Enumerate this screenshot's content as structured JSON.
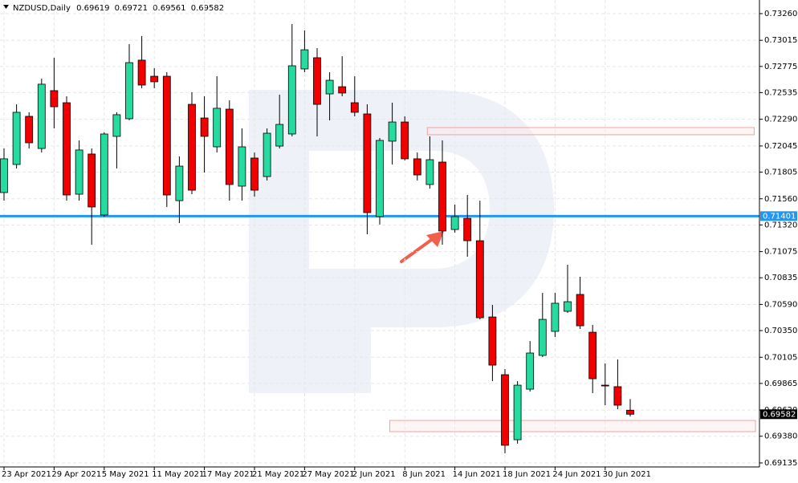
{
  "chart_data": {
    "type": "candlestick",
    "title": "NZDUSD,Daily",
    "categories": [
      "23 Apr 2021",
      null,
      null,
      null,
      "29 Apr 2021",
      null,
      null,
      null,
      "5 May 2021",
      null,
      null,
      null,
      "11 May 2021",
      null,
      null,
      null,
      "17 May 2021",
      null,
      null,
      null,
      "21 May 2021",
      null,
      null,
      null,
      "27 May 2021",
      null,
      null,
      null,
      "2 Jun 2021",
      null,
      null,
      null,
      "8 Jun 2021",
      null,
      null,
      null,
      "14 Jun 2021",
      null,
      null,
      null,
      "18 Jun 2021",
      null,
      null,
      null,
      "24 Jun 2021",
      null,
      null,
      null,
      "30 Jun 2021",
      null,
      null
    ],
    "open": [
      0.71617,
      0.71875,
      0.72317,
      0.72022,
      0.72553,
      0.72442,
      0.71602,
      0.71971,
      0.71411,
      0.72133,
      0.72295,
      0.72833,
      0.72685,
      0.72685,
      0.71543,
      0.72427,
      0.72302,
      0.72037,
      0.72383,
      0.71676,
      0.71934,
      0.71764,
      0.72044,
      0.72155,
      0.72752,
      0.72855,
      0.72523,
      0.72589,
      0.72442,
      0.72339,
      0.71396,
      0.72089,
      0.72265,
      0.71927,
      0.71691,
      0.71897,
      0.71278,
      0.71381,
      0.71175,
      0.70475,
      0.69945,
      0.69348,
      0.69812,
      0.70122,
      0.70343,
      0.70527,
      0.70682,
      0.70335,
      0.69849,
      0.69835,
      0.69619
    ],
    "high": [
      0.72022,
      0.72427,
      0.72354,
      0.72663,
      0.72855,
      0.72501,
      0.72096,
      0.72022,
      0.7217,
      0.72354,
      0.7298,
      0.73054,
      0.72759,
      0.72722,
      0.71949,
      0.72538,
      0.72501,
      0.72685,
      0.72464,
      0.72206,
      0.71985,
      0.72206,
      0.72516,
      0.73164,
      0.73105,
      0.72943,
      0.72722,
      0.72869,
      0.72685,
      0.72427,
      0.72118,
      0.72442,
      0.72317,
      0.71985,
      0.72133,
      0.72096,
      0.71507,
      0.71595,
      0.71543,
      0.70586,
      0.69997,
      0.69886,
      0.70254,
      0.70696,
      0.70696,
      0.70954,
      0.70844,
      0.70402,
      0.70048,
      0.70085,
      0.69721
    ],
    "low": [
      0.71543,
      0.71838,
      0.72022,
      0.71985,
      0.72206,
      0.71543,
      0.71543,
      0.71138,
      0.71396,
      0.71838,
      0.7228,
      0.72575,
      0.72575,
      0.71485,
      0.71337,
      0.71602,
      0.71801,
      0.71985,
      0.71543,
      0.71543,
      0.7158,
      0.71728,
      0.72022,
      0.72133,
      0.72722,
      0.72133,
      0.7228,
      0.72501,
      0.72317,
      0.71234,
      0.71323,
      0.71875,
      0.71912,
      0.71728,
      0.71654,
      0.71138,
      0.71249,
      0.71028,
      0.70453,
      0.69886,
      0.69223,
      0.69312,
      0.6979,
      0.70107,
      0.70291,
      0.70512,
      0.70365,
      0.69776,
      0.69665,
      0.69628,
      0.69561
    ],
    "close": [
      0.71927,
      0.72354,
      0.72074,
      0.72612,
      0.72405,
      0.71595,
      0.72008,
      0.71485,
      0.72155,
      0.72332,
      0.7281,
      0.72604,
      0.72634,
      0.71595,
      0.7186,
      0.71639,
      0.72133,
      0.72391,
      0.71691,
      0.72037,
      0.71639,
      0.72162,
      0.72243,
      0.72781,
      0.72928,
      0.72427,
      0.72648,
      0.72531,
      0.72354,
      0.71433,
      0.72096,
      0.72265,
      0.71927,
      0.71779,
      0.71919,
      0.71264,
      0.71396,
      0.71175,
      0.70468,
      0.70033,
      0.69297,
      0.69849,
      0.70144,
      0.70453,
      0.70601,
      0.70615,
      0.70394,
      0.69908,
      0.69842,
      0.69665,
      0.69582
    ],
    "up_color": "#26dba0",
    "down_color": "#f20000",
    "ylim": [
      0.69098,
      0.73385
    ],
    "yticks": [
      {
        "value": 0.7326,
        "label": "0.73260"
      },
      0.73015,
      0.72775,
      0.72535,
      {
        "value": 0.7229,
        "label": "0.72290"
      },
      0.72045,
      0.71805,
      {
        "value": 0.7156,
        "label": "0.71560"
      },
      {
        "value": 0.7132,
        "label": "0.71320"
      },
      0.71075,
      0.70835,
      {
        "value": 0.7059,
        "label": "0.70590"
      },
      {
        "value": 0.7035,
        "label": "0.70350"
      },
      0.70105,
      0.69865,
      {
        "value": 0.6962,
        "label": "0.69620"
      },
      {
        "value": 0.6938,
        "label": "0.69380"
      },
      0.69135
    ],
    "grid": true,
    "hline": {
      "value": 0.71401,
      "color": "#2196f3"
    },
    "zones": [
      {
        "x": [
          33.8,
          59.9
        ],
        "y": [
          0.72148,
          0.72214
        ]
      },
      {
        "x": [
          30.8,
          60.0
        ],
        "y": [
          0.69422,
          0.69525
        ]
      }
    ]
  }
}
